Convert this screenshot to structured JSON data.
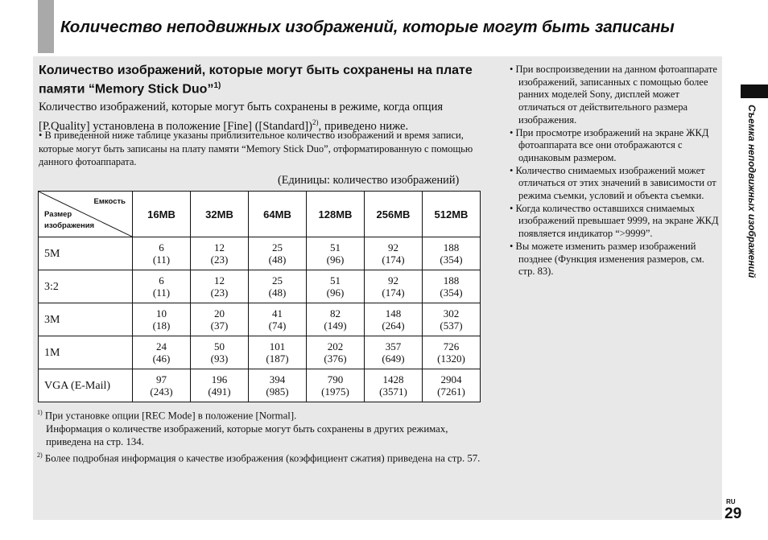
{
  "header": {
    "title": "Количество неподвижных изображений, которые могут быть записаны"
  },
  "section": {
    "heading": "Количество изображений, которые могут быть сохранены на плате памяти “Memory Stick Duo”",
    "heading_sup": "1)",
    "intro_a": "Количество изображений, которые могут быть сохранены в режиме, когда опция [P.Quality] установлена в положение [Fine] ([Standard])",
    "intro_sup": "2)",
    "intro_b": ", приведено ниже.",
    "bullet": "• В приведенной ниже таблице указаны приблизительное количество изображений и время записи, которые могут быть записаны на плату памяти “Memory Stick Duo”, отформатированную с помощью данного фотоаппарата.",
    "units": "(Единицы: количество изображений)"
  },
  "table": {
    "corner_capacity": "Емкость",
    "corner_size_1": "Размер",
    "corner_size_2": "изображения",
    "columns": [
      "16MB",
      "32MB",
      "64MB",
      "128MB",
      "256MB",
      "512MB"
    ],
    "rows": [
      {
        "label": "5M",
        "cells": [
          [
            "6",
            "(11)"
          ],
          [
            "12",
            "(23)"
          ],
          [
            "25",
            "(48)"
          ],
          [
            "51",
            "(96)"
          ],
          [
            "92",
            "(174)"
          ],
          [
            "188",
            "(354)"
          ]
        ]
      },
      {
        "label": "3:2",
        "cells": [
          [
            "6",
            "(11)"
          ],
          [
            "12",
            "(23)"
          ],
          [
            "25",
            "(48)"
          ],
          [
            "51",
            "(96)"
          ],
          [
            "92",
            "(174)"
          ],
          [
            "188",
            "(354)"
          ]
        ]
      },
      {
        "label": "3M",
        "cells": [
          [
            "10",
            "(18)"
          ],
          [
            "20",
            "(37)"
          ],
          [
            "41",
            "(74)"
          ],
          [
            "82",
            "(149)"
          ],
          [
            "148",
            "(264)"
          ],
          [
            "302",
            "(537)"
          ]
        ]
      },
      {
        "label": "1M",
        "cells": [
          [
            "24",
            "(46)"
          ],
          [
            "50",
            "(93)"
          ],
          [
            "101",
            "(187)"
          ],
          [
            "202",
            "(376)"
          ],
          [
            "357",
            "(649)"
          ],
          [
            "726",
            "(1320)"
          ]
        ]
      },
      {
        "label": "VGA (E-Mail)",
        "cells": [
          [
            "97",
            "(243)"
          ],
          [
            "196",
            "(491)"
          ],
          [
            "394",
            "(985)"
          ],
          [
            "790",
            "(1975)"
          ],
          [
            "1428",
            "(3571)"
          ],
          [
            "2904",
            "(7261)"
          ]
        ]
      }
    ]
  },
  "notes": [
    {
      "mark": "1)",
      "lines": [
        "При установке опции [REC Mode] в положение [Normal].",
        "Информация о количестве изображений, которые могут быть сохранены в других режимах, приведена на стр. 134."
      ]
    },
    {
      "mark": "2)",
      "lines": [
        "Более подробная информация о качестве изображения (коэффициент сжатия) приведена на стр. 57."
      ]
    }
  ],
  "right_bullets": [
    "• При воспроизведении на данном фотоаппарате изображений, записанных с помощью более ранних моделей Sony, дисплей может отличаться от действительного размера изображения.",
    "• При просмотре изображений на экране ЖКД фотоаппарата все они отображаются с одинаковым размером.",
    "• Количество снимаемых изображений может отличаться от этих значений в зависимости от режима съемки, условий и объекта съемки.",
    "• Когда количество оставшихся снимаемых изображений превышает 9999, на экране ЖКД появляется индикатор “>9999”.",
    "• Вы можете изменить размер изображений позднее (Функция изменения размеров, см. стр. 83)."
  ],
  "side_tab": {
    "label": "Съемка неподвижных изображений"
  },
  "footer": {
    "lang": "RU",
    "page": "29"
  }
}
